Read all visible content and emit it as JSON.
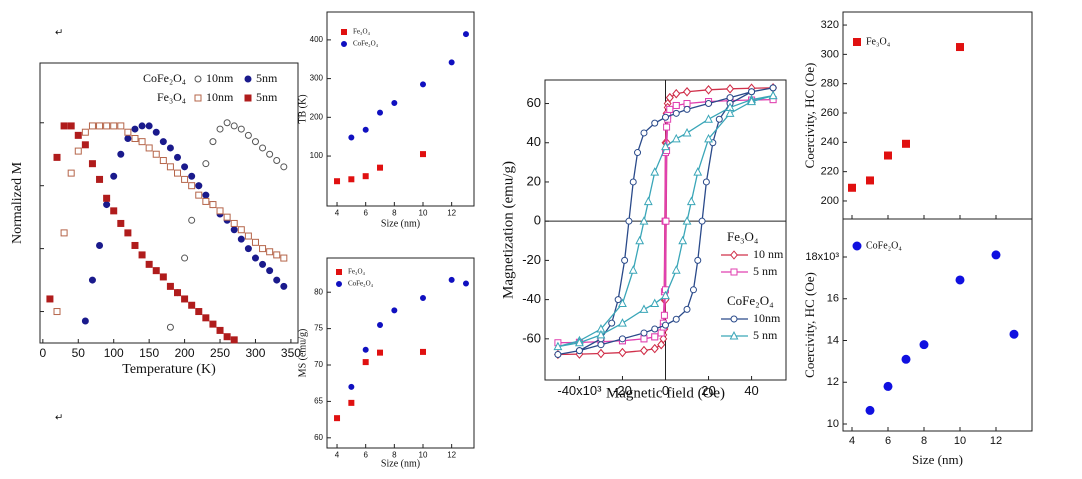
{
  "paragraph_marks": [
    "↵",
    "↵"
  ],
  "chart_data": [
    {
      "type": "scatter",
      "xlabel": "Temperature (K)",
      "ylabel": "Normalized M",
      "xlim": [
        -4,
        360
      ],
      "xticks": [
        0,
        50,
        100,
        150,
        200,
        250,
        300,
        350
      ],
      "ylim": [
        0.3,
        1.19
      ],
      "yticks": [
        0.4,
        0.6,
        0.8,
        1.0
      ],
      "ytick_labels": false,
      "groups": [
        {
          "name": "CoFe₂O₄",
          "series": [
            {
              "name": "10nm",
              "color": "#555555",
              "marker": "circle",
              "filled": false,
              "x": [
                180,
                190,
                200,
                210,
                220,
                230,
                240,
                250,
                260,
                270,
                280,
                290,
                300,
                310,
                320,
                330,
                340
              ],
              "values": [
                0.35,
                0.46,
                0.57,
                0.69,
                0.8,
                0.87,
                0.94,
                0.98,
                1.0,
                0.99,
                0.98,
                0.96,
                0.94,
                0.92,
                0.9,
                0.88,
                0.86
              ]
            },
            {
              "name": "5nm",
              "color": "#1a1a8c",
              "marker": "circle",
              "filled": true,
              "x": [
                60,
                70,
                80,
                90,
                100,
                110,
                120,
                130,
                140,
                150,
                160,
                170,
                180,
                190,
                200,
                210,
                220,
                230,
                240,
                250,
                260,
                270,
                280,
                290,
                300,
                310,
                320,
                330,
                340
              ],
              "values": [
                0.37,
                0.5,
                0.61,
                0.74,
                0.83,
                0.9,
                0.95,
                0.98,
                0.99,
                0.99,
                0.97,
                0.94,
                0.92,
                0.89,
                0.86,
                0.83,
                0.8,
                0.77,
                0.74,
                0.71,
                0.69,
                0.66,
                0.63,
                0.6,
                0.57,
                0.55,
                0.53,
                0.5,
                0.48
              ]
            }
          ]
        },
        {
          "name": "Fe₃O₄",
          "series": [
            {
              "name": "10nm",
              "color": "#b5654a",
              "marker": "square",
              "filled": false,
              "x": [
                20,
                30,
                40,
                50,
                60,
                70,
                80,
                90,
                100,
                110,
                120,
                130,
                140,
                150,
                160,
                170,
                180,
                190,
                200,
                210,
                220,
                230,
                240,
                250,
                260,
                270,
                280,
                290,
                300,
                310,
                320,
                330,
                340
              ],
              "values": [
                0.4,
                0.65,
                0.84,
                0.91,
                0.97,
                0.99,
                0.99,
                0.99,
                0.99,
                0.99,
                0.97,
                0.95,
                0.94,
                0.92,
                0.9,
                0.88,
                0.86,
                0.84,
                0.82,
                0.8,
                0.77,
                0.75,
                0.74,
                0.72,
                0.7,
                0.68,
                0.66,
                0.64,
                0.62,
                0.6,
                0.59,
                0.58,
                0.57
              ]
            },
            {
              "name": "5nm",
              "color": "#b01c1c",
              "marker": "square",
              "filled": true,
              "x": [
                10,
                20,
                30,
                40,
                50,
                60,
                70,
                80,
                90,
                100,
                110,
                120,
                130,
                140,
                150,
                160,
                170,
                180,
                190,
                200,
                210,
                220,
                230,
                240,
                250,
                260,
                270
              ],
              "values": [
                0.44,
                0.89,
                0.99,
                0.99,
                0.96,
                0.93,
                0.87,
                0.82,
                0.76,
                0.72,
                0.68,
                0.65,
                0.61,
                0.58,
                0.55,
                0.53,
                0.51,
                0.48,
                0.46,
                0.44,
                0.42,
                0.4,
                0.38,
                0.36,
                0.34,
                0.32,
                0.31
              ]
            }
          ]
        }
      ]
    },
    {
      "type": "scatter",
      "xlabel": "Size (nm)",
      "ylabel": "TB (K)",
      "xlim": [
        3.3,
        13.56
      ],
      "xticks": [
        4,
        6,
        8,
        10,
        12
      ],
      "ylim": [
        -29,
        472
      ],
      "yticks": [
        100,
        200,
        300,
        400
      ],
      "series": [
        {
          "name": "Fe₃O₄",
          "color": "#e01010",
          "marker": "square",
          "filled": true,
          "x": [
            4,
            5,
            6,
            7,
            10
          ],
          "values": [
            35,
            40,
            48,
            70,
            105
          ]
        },
        {
          "name": "CoFe₂O₄",
          "color": "#1010c0",
          "marker": "circle",
          "filled": true,
          "x": [
            5,
            6,
            7,
            8,
            10,
            12,
            13
          ],
          "values": [
            148,
            168,
            212,
            237,
            285,
            342,
            415
          ]
        }
      ]
    },
    {
      "type": "scatter",
      "xlabel": "Size (nm)",
      "ylabel": "MS (emu/g)",
      "xlim": [
        3.3,
        13.56
      ],
      "xticks": [
        4,
        6,
        8,
        10,
        12
      ],
      "ylim": [
        58.6,
        84.7
      ],
      "yticks": [
        60,
        65,
        70,
        75,
        80
      ],
      "series": [
        {
          "name": "Fe₃O₄",
          "color": "#e01010",
          "marker": "square",
          "filled": true,
          "x": [
            4,
            5,
            6,
            7,
            10
          ],
          "values": [
            62.7,
            64.8,
            70.4,
            71.7,
            71.8
          ]
        },
        {
          "name": "CoFe₂O₄",
          "color": "#1010c0",
          "marker": "circle",
          "filled": true,
          "x": [
            5,
            6,
            7,
            8,
            10,
            12,
            13
          ],
          "values": [
            67,
            72.1,
            75.5,
            77.5,
            79.2,
            81.7,
            81.2
          ]
        }
      ]
    },
    {
      "type": "line",
      "xlabel": "Magnetic field (Oe)",
      "ylabel": "Magnetization (emu/g)",
      "zero_lines": true,
      "xlim": [
        -56000,
        56000
      ],
      "xticks": [
        {
          "value": -40000,
          "label": "-40x10³"
        },
        {
          "value": -20000,
          "label": "-20"
        },
        0,
        {
          "value": 20000,
          "label": "20"
        },
        {
          "value": 40000,
          "label": "40"
        }
      ],
      "ylim": [
        -81,
        72
      ],
      "yticks": [
        -60,
        -40,
        -20,
        0,
        20,
        40,
        60
      ],
      "groups": [
        {
          "name": "Fe₃O₄",
          "series": [
            {
              "name": "10 nm",
              "color": "#d0304a",
              "marker": "diamond",
              "filled": false,
              "x": [
                50000,
                40000,
                30000,
                20000,
                10000,
                5000,
                2000,
                1000,
                500,
                0,
                -300,
                -600,
                -1000,
                -2000,
                -5000,
                -10000,
                -20000,
                -30000,
                -40000,
                -50000,
                -40000,
                -30000,
                -20000,
                -10000,
                -5000,
                -2000,
                -1000,
                -500,
                0,
                300,
                600,
                1000,
                2000,
                5000,
                10000,
                20000,
                30000,
                40000,
                50000
              ],
              "values": [
                68,
                67.8,
                67.5,
                67,
                66,
                65,
                63,
                60,
                55,
                40,
                0,
                -40,
                -58,
                -63,
                -65,
                -66,
                -67,
                -67.5,
                -67.8,
                -68,
                -67.8,
                -67.5,
                -67,
                -66,
                -65,
                -63,
                -60,
                -55,
                -40,
                0,
                40,
                58,
                63,
                65,
                66,
                67,
                67.5,
                67.8,
                68
              ]
            },
            {
              "name": "5 nm",
              "color": "#e040b0",
              "marker": "square",
              "filled": false,
              "x": [
                50000,
                40000,
                30000,
                20000,
                10000,
                5000,
                2000,
                1000,
                500,
                0,
                -200,
                -500,
                -1000,
                -2000,
                -5000,
                -10000,
                -20000,
                -30000,
                -40000,
                -50000,
                -40000,
                -30000,
                -20000,
                -10000,
                -5000,
                -2000,
                -1000,
                -500,
                0,
                200,
                500,
                1000,
                2000,
                5000,
                10000,
                20000,
                30000,
                40000,
                50000
              ],
              "values": [
                62,
                61.8,
                61.5,
                61,
                60,
                59,
                57,
                54,
                48,
                35,
                0,
                -36,
                -52,
                -57,
                -59,
                -60,
                -61,
                -61.5,
                -61.8,
                -62,
                -61.8,
                -61.5,
                -61,
                -60,
                -59,
                -57,
                -54,
                -48,
                -35,
                0,
                36,
                52,
                57,
                59,
                60,
                61,
                61.5,
                61.8,
                62
              ]
            }
          ]
        },
        {
          "name": "CoFe₂O₄",
          "series": [
            {
              "name": "10nm",
              "color": "#2a4a8a",
              "marker": "circle",
              "filled": false,
              "x": [
                50000,
                40000,
                30000,
                20000,
                10000,
                5000,
                0,
                -5000,
                -10000,
                -13000,
                -15000,
                -17000,
                -19000,
                -22000,
                -25000,
                -30000,
                -40000,
                -50000,
                -40000,
                -30000,
                -20000,
                -10000,
                -5000,
                0,
                5000,
                10000,
                13000,
                15000,
                17000,
                19000,
                22000,
                25000,
                30000,
                40000,
                50000
              ],
              "values": [
                68,
                66,
                63,
                60,
                57,
                55,
                53,
                50,
                45,
                35,
                20,
                0,
                -20,
                -40,
                -52,
                -60,
                -66,
                -68,
                -66,
                -63,
                -60,
                -57,
                -55,
                -53,
                -50,
                -45,
                -35,
                -20,
                0,
                20,
                40,
                52,
                60,
                66,
                68
              ]
            },
            {
              "name": "5 nm",
              "color": "#3aa6b8",
              "marker": "triangle",
              "filled": false,
              "x": [
                50000,
                40000,
                30000,
                20000,
                10000,
                5000,
                0,
                -5000,
                -8000,
                -10000,
                -12000,
                -15000,
                -20000,
                -30000,
                -40000,
                -50000,
                -40000,
                -30000,
                -20000,
                -10000,
                -5000,
                0,
                5000,
                8000,
                10000,
                12000,
                15000,
                20000,
                30000,
                40000,
                50000
              ],
              "values": [
                64,
                62,
                58,
                52,
                45,
                42,
                38,
                25,
                10,
                0,
                -10,
                -25,
                -42,
                -55,
                -61,
                -64,
                -62,
                -58,
                -52,
                -45,
                -42,
                -38,
                -25,
                -10,
                0,
                10,
                25,
                42,
                55,
                61,
                64
              ]
            }
          ]
        }
      ]
    },
    {
      "type": "scatter",
      "ylabel": "Coercivity, HC (Oe)",
      "xtick_labels": false,
      "xlim": [
        3.5,
        14
      ],
      "xticks": [
        4,
        6,
        8,
        10,
        12
      ],
      "ylim": [
        187.7,
        328.9
      ],
      "yticks": [
        200,
        220,
        240,
        260,
        280,
        300,
        320
      ],
      "series": [
        {
          "name": "Fe₃O₄",
          "color": "#e01010",
          "marker": "square",
          "filled": true,
          "x": [
            4,
            5,
            6,
            7,
            10
          ],
          "values": [
            209,
            214,
            231,
            239,
            305
          ]
        }
      ]
    },
    {
      "type": "scatter",
      "xlabel": "Size (nm)",
      "ylabel": "Coercivity, HC (Oe)",
      "xlim": [
        3.5,
        14
      ],
      "xticks": [
        4,
        6,
        8,
        10,
        12
      ],
      "ylim": [
        9665,
        19820
      ],
      "yticks": [
        {
          "value": 10000,
          "label": "10"
        },
        {
          "value": 12000,
          "label": "12"
        },
        {
          "value": 14000,
          "label": "14"
        },
        {
          "value": 16000,
          "label": "16"
        },
        {
          "value": 18000,
          "label": "18x10³"
        }
      ],
      "series": [
        {
          "name": "CoFe₂O₄",
          "color": "#1010e0",
          "marker": "circle",
          "filled": true,
          "x": [
            5,
            6,
            7,
            8,
            10,
            12,
            13
          ],
          "values": [
            10650,
            11800,
            13100,
            13800,
            16900,
            18100,
            14300
          ]
        }
      ]
    }
  ]
}
